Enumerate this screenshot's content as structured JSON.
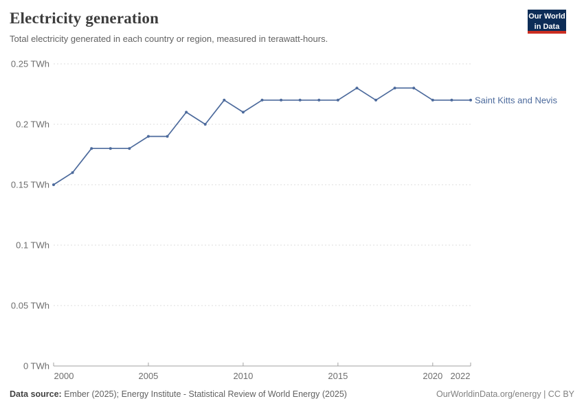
{
  "header": {
    "title": "Electricity generation",
    "subtitle": "Total electricity generated in each country or region, measured in terawatt-hours."
  },
  "logo": {
    "line1": "Our World",
    "line2": "in Data"
  },
  "footer": {
    "source_label": "Data source:",
    "source_text": " Ember (2025); Energy Institute - Statistical Review of World Energy (2025)",
    "link_text": "OurWorldinData.org/energy | CC BY"
  },
  "colors": {
    "series": "#4c6a9c",
    "grid": "#dcdcdc",
    "axis": "#a2a2a2",
    "tick_label": "#6e6e6e",
    "logo_bg": "#0d2d57",
    "logo_stripe": "#cb2d21"
  },
  "chart_data": {
    "type": "line",
    "title": "Electricity generation",
    "subtitle": "Total electricity generated in each country or region, measured in terawatt-hours.",
    "unit": "TWh",
    "x": [
      2000,
      2001,
      2002,
      2003,
      2004,
      2005,
      2006,
      2007,
      2008,
      2009,
      2010,
      2011,
      2012,
      2013,
      2014,
      2015,
      2016,
      2017,
      2018,
      2019,
      2020,
      2021,
      2022
    ],
    "series": [
      {
        "name": "Saint Kitts and Nevis",
        "values": [
          0.15,
          0.16,
          0.18,
          0.18,
          0.18,
          0.19,
          0.19,
          0.21,
          0.2,
          0.22,
          0.21,
          0.22,
          0.22,
          0.22,
          0.22,
          0.22,
          0.23,
          0.22,
          0.23,
          0.23,
          0.22,
          0.22,
          0.22
        ]
      }
    ],
    "ylim": [
      0,
      0.25
    ],
    "yticks": [
      0,
      0.05,
      0.1,
      0.15,
      0.2,
      0.25
    ],
    "ytick_labels": [
      "0 TWh",
      "0.05 TWh",
      "0.1 TWh",
      "0.15 TWh",
      "0.2 TWh",
      "0.25 TWh"
    ],
    "xticks": [
      2000,
      2005,
      2010,
      2015,
      2020,
      2022
    ],
    "xtick_labels": [
      "2000",
      "2005",
      "2010",
      "2015",
      "2020",
      "2022"
    ],
    "grid": true,
    "grid_style": "dashed",
    "legend_position": "end-of-line"
  }
}
